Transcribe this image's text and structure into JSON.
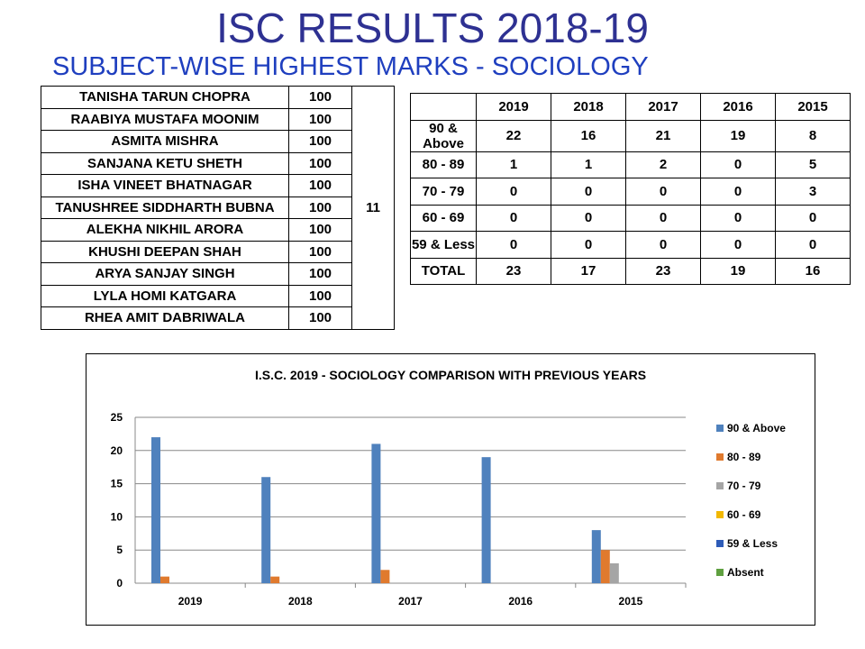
{
  "title": "ISC RESULTS 2018-19",
  "subtitle": "SUBJECT-WISE HIGHEST MARKS - SOCIOLOGY",
  "toppers": [
    {
      "name": "TANISHA TARUN CHOPRA",
      "marks": "100"
    },
    {
      "name": "RAABIYA MUSTAFA MOONIM",
      "marks": "100"
    },
    {
      "name": "ASMITA MISHRA",
      "marks": "100"
    },
    {
      "name": "SANJANA KETU SHETH",
      "marks": "100"
    },
    {
      "name": "ISHA VINEET BHATNAGAR",
      "marks": "100"
    },
    {
      "name": "TANUSHREE SIDDHARTH BUBNA",
      "marks": "100"
    },
    {
      "name": "ALEKHA NIKHIL ARORA",
      "marks": "100"
    },
    {
      "name": "KHUSHI DEEPAN SHAH",
      "marks": "100"
    },
    {
      "name": "ARYA SANJAY SINGH",
      "marks": "100"
    },
    {
      "name": "LYLA HOMI KATGARA",
      "marks": "100"
    },
    {
      "name": "RHEA AMIT DABRIWALA",
      "marks": "100"
    }
  ],
  "toppers_count": "11",
  "summary": {
    "headers": [
      "",
      "2019",
      "2018",
      "2017",
      "2016",
      "2015"
    ],
    "rows": [
      [
        "90 & Above",
        "22",
        "16",
        "21",
        "19",
        "8"
      ],
      [
        "80 - 89",
        "1",
        "1",
        "2",
        "0",
        "5"
      ],
      [
        "70 - 79",
        "0",
        "0",
        "0",
        "0",
        "3"
      ],
      [
        "60 - 69",
        "0",
        "0",
        "0",
        "0",
        "0"
      ],
      [
        "59 & Less",
        "0",
        "0",
        "0",
        "0",
        "0"
      ],
      [
        "TOTAL",
        "23",
        "17",
        "23",
        "19",
        "16"
      ]
    ]
  },
  "chart_data": {
    "type": "bar",
    "title": "I.S.C. 2019 - SOCIOLOGY COMPARISON WITH PREVIOUS YEARS",
    "categories": [
      "2019",
      "2018",
      "2017",
      "2016",
      "2015"
    ],
    "series": [
      {
        "name": "90 & Above",
        "color": "#4f81bd",
        "values": [
          22,
          16,
          21,
          19,
          8
        ]
      },
      {
        "name": "80 - 89",
        "color": "#e07a2e",
        "values": [
          1,
          1,
          2,
          0,
          5
        ]
      },
      {
        "name": "70 - 79",
        "color": "#a5a5a5",
        "values": [
          0,
          0,
          0,
          0,
          3
        ]
      },
      {
        "name": "60 - 69",
        "color": "#f2b800",
        "values": [
          0,
          0,
          0,
          0,
          0
        ]
      },
      {
        "name": "59 & Less",
        "color": "#2e5cb8",
        "values": [
          0,
          0,
          0,
          0,
          0
        ]
      },
      {
        "name": "Absent",
        "color": "#5fa040",
        "values": [
          0,
          0,
          0,
          0,
          0
        ]
      }
    ],
    "ylim": [
      0,
      25
    ],
    "yticks": [
      0,
      5,
      10,
      15,
      20,
      25
    ],
    "grid": true,
    "legend": "right"
  }
}
